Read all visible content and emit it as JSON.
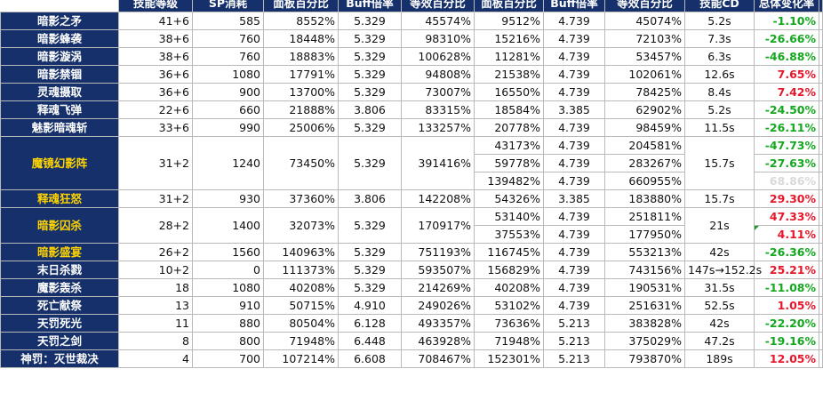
{
  "headers": [
    "技能等级",
    "SP消耗",
    "面板百分比",
    "Buff倍率",
    "等效百分比",
    "面板百分比",
    "Buff倍率",
    "等效百分比",
    "技能CD",
    "总体变化率"
  ],
  "rows": [
    {
      "name": "暗影之矛",
      "level": "41+6",
      "sp": "585",
      "panel": "8552%",
      "buff": "5.329",
      "equiv": "45574%",
      "panel2": "9512%",
      "buff2": "4.739",
      "equiv2": "45074%",
      "cd": "5.2s",
      "change": "-1.10%",
      "color": "green"
    },
    {
      "name": "暗影蜂袭",
      "level": "38+6",
      "sp": "760",
      "panel": "18448%",
      "buff": "5.329",
      "equiv": "98310%",
      "panel2": "15216%",
      "buff2": "4.739",
      "equiv2": "72103%",
      "cd": "7.3s",
      "change": "-26.66%",
      "color": "green"
    },
    {
      "name": "暗影漩涡",
      "level": "38+6",
      "sp": "760",
      "panel": "18883%",
      "buff": "5.329",
      "equiv": "100628%",
      "panel2": "11281%",
      "buff2": "4.739",
      "equiv2": "53457%",
      "cd": "6.3s",
      "change": "-46.88%",
      "color": "green"
    },
    {
      "name": "暗影禁锢",
      "level": "36+6",
      "sp": "1080",
      "panel": "17791%",
      "buff": "5.329",
      "equiv": "94808%",
      "panel2": "21538%",
      "buff2": "4.739",
      "equiv2": "102061%",
      "cd": "12.6s",
      "change": "7.65%",
      "color": "red"
    },
    {
      "name": "灵魂摄取",
      "level": "36+6",
      "sp": "900",
      "panel": "13700%",
      "buff": "5.329",
      "equiv": "73007%",
      "panel2": "16550%",
      "buff2": "4.739",
      "equiv2": "78425%",
      "cd": "8.4s",
      "change": "7.42%",
      "color": "red"
    },
    {
      "name": "释魂飞弹",
      "level": "22+6",
      "sp": "660",
      "panel": "21888%",
      "buff": "3.806",
      "equiv": "83315%",
      "panel2": "18584%",
      "buff2": "3.385",
      "equiv2": "62902%",
      "cd": "5.2s",
      "change": "-24.50%",
      "color": "green"
    },
    {
      "name": "魅影暗魂斩",
      "level": "33+6",
      "sp": "990",
      "panel": "25006%",
      "buff": "5.329",
      "equiv": "133257%",
      "panel2": "20778%",
      "buff2": "4.739",
      "equiv2": "98459%",
      "cd": "11.5s",
      "change": "-26.11%",
      "color": "green"
    }
  ],
  "mirror": {
    "name": "魔镜幻影阵",
    "level": "31+2",
    "sp": "1240",
    "panel": "73450%",
    "buff": "5.329",
    "equiv": "391416%",
    "cd": "15.7s",
    "subs": [
      {
        "panel2": "43173%",
        "buff2": "4.739",
        "equiv2": "204581%",
        "change": "-47.73%",
        "color": "green"
      },
      {
        "panel2": "59778%",
        "buff2": "4.739",
        "equiv2": "283267%",
        "change": "-27.63%",
        "color": "green"
      },
      {
        "panel2": "139482%",
        "buff2": "4.739",
        "equiv2": "660955%",
        "change": "68.86%",
        "color": "grey"
      }
    ]
  },
  "soul": {
    "name": "释魂狂怒",
    "level": "31+2",
    "sp": "930",
    "panel": "37360%",
    "buff": "3.806",
    "equiv": "142208%",
    "panel2": "54326%",
    "buff2": "3.385",
    "equiv2": "183880%",
    "cd": "15.7s",
    "change": "29.30%",
    "color": "red"
  },
  "prison": {
    "name": "暗影囚杀",
    "level": "28+2",
    "sp": "1400",
    "panel": "32073%",
    "buff": "5.329",
    "equiv": "170917%",
    "cd": "21s",
    "subs": [
      {
        "panel2": "53140%",
        "buff2": "4.739",
        "equiv2": "251811%",
        "change": "47.33%",
        "color": "red"
      },
      {
        "panel2": "37553%",
        "buff2": "4.739",
        "equiv2": "177950%",
        "change": "4.11%",
        "color": "red"
      }
    ]
  },
  "rows2": [
    {
      "name": "暗影盛宴",
      "level": "26+2",
      "sp": "1560",
      "panel": "140963%",
      "buff": "5.329",
      "equiv": "751193%",
      "panel2": "116745%",
      "buff2": "4.739",
      "equiv2": "553213%",
      "cd": "42s",
      "change": "-26.36%",
      "color": "green",
      "gold": true
    },
    {
      "name": "末日杀戮",
      "level": "10+2",
      "sp": "0",
      "panel": "111373%",
      "buff": "5.329",
      "equiv": "593507%",
      "panel2": "156829%",
      "buff2": "4.739",
      "equiv2": "743156%",
      "cd": "147s→152.2s",
      "change": "25.21%",
      "color": "red"
    },
    {
      "name": "魔影轰杀",
      "level": "18",
      "sp": "1080",
      "panel": "40208%",
      "buff": "5.329",
      "equiv": "214269%",
      "panel2": "40208%",
      "buff2": "4.739",
      "equiv2": "190531%",
      "cd": "31.5s",
      "change": "-11.08%",
      "color": "green"
    },
    {
      "name": "死亡献祭",
      "level": "13",
      "sp": "910",
      "panel": "50715%",
      "buff": "4.910",
      "equiv": "249026%",
      "panel2": "53102%",
      "buff2": "4.739",
      "equiv2": "251631%",
      "cd": "52.5s",
      "change": "1.05%",
      "color": "red"
    },
    {
      "name": "天罚死光",
      "level": "11",
      "sp": "880",
      "panel": "80504%",
      "buff": "6.128",
      "equiv": "493357%",
      "panel2": "73636%",
      "buff2": "5.213",
      "equiv2": "383828%",
      "cd": "42s",
      "change": "-22.20%",
      "color": "green"
    },
    {
      "name": "天罚之剑",
      "level": "8",
      "sp": "800",
      "panel": "71948%",
      "buff": "6.448",
      "equiv": "463928%",
      "panel2": "71948%",
      "buff2": "5.213",
      "equiv2": "375029%",
      "cd": "47.2s",
      "change": "-19.16%",
      "color": "green"
    },
    {
      "name": "神罚：灭世裁决",
      "level": "4",
      "sp": "700",
      "panel": "107214%",
      "buff": "6.608",
      "equiv": "708467%",
      "panel2": "152301%",
      "buff2": "5.213",
      "equiv2": "793870%",
      "cd": "189s",
      "change": "12.05%",
      "color": "red"
    }
  ],
  "colors": {
    "header_bg": "#15306b",
    "name_gold": "#ffd400",
    "green": "#14a81f",
    "red": "#e8162a"
  }
}
